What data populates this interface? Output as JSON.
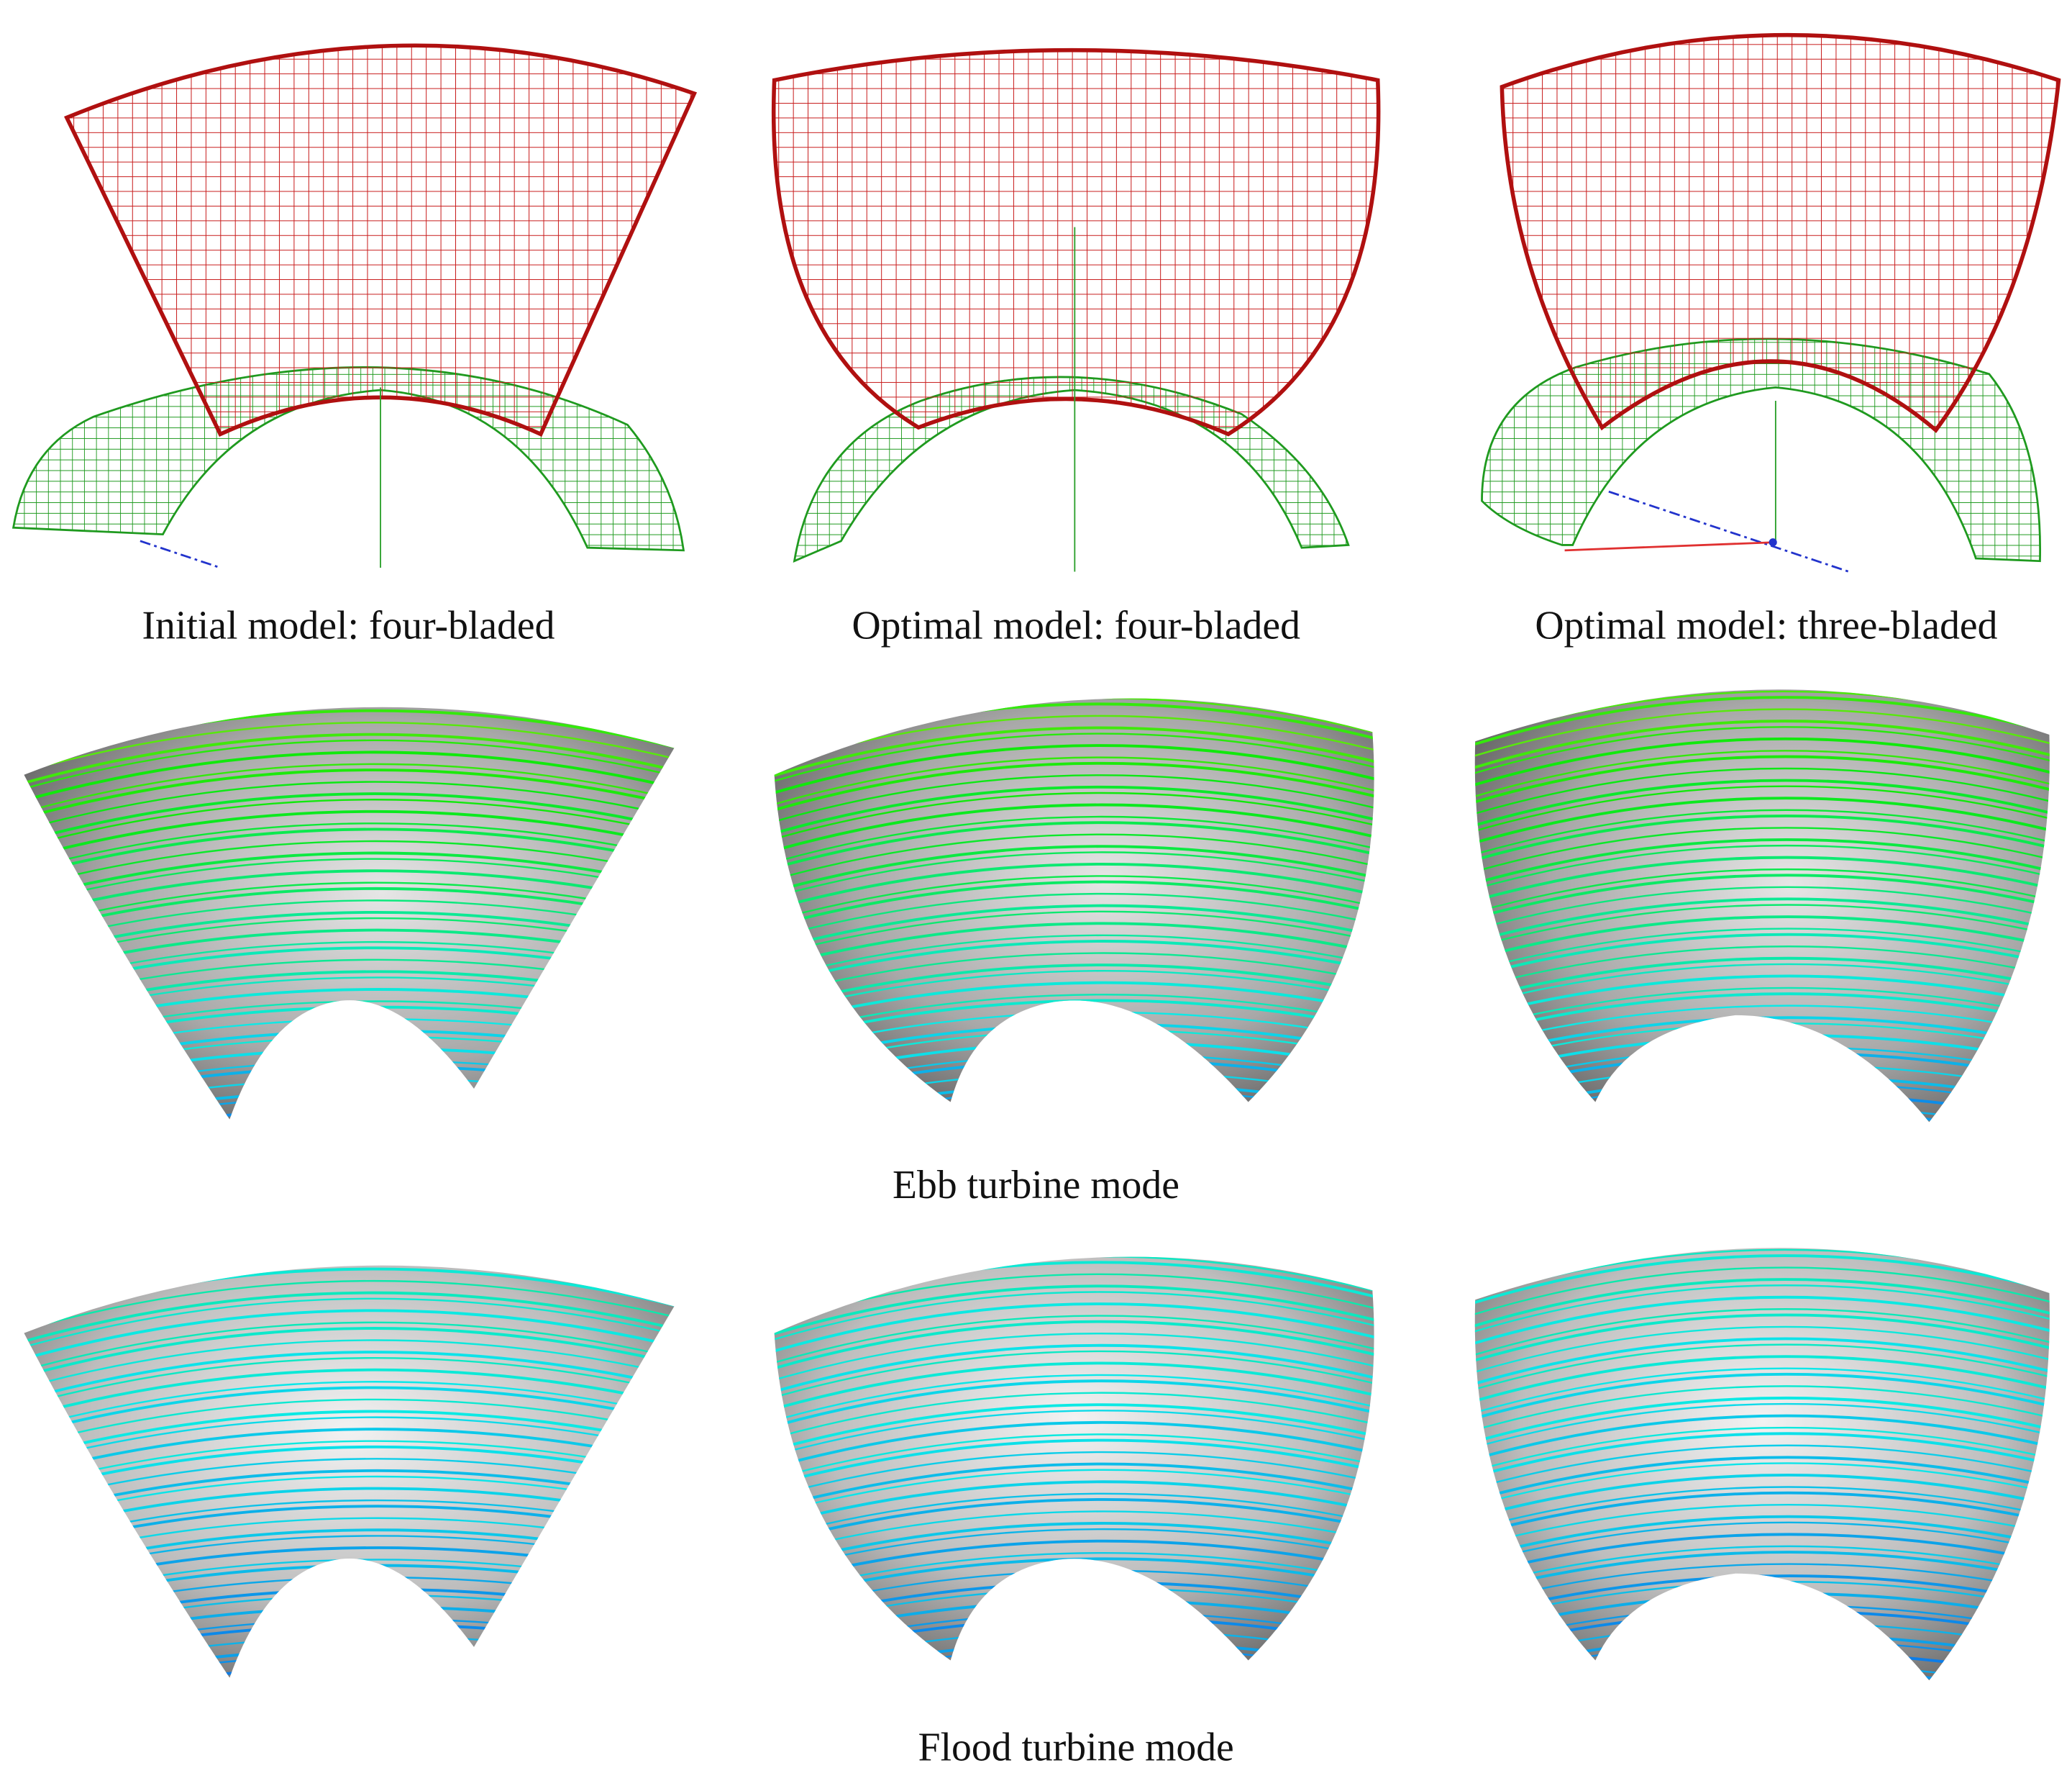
{
  "panels": [
    {
      "caption": "Initial model: four-bladed"
    },
    {
      "caption": "Optimal model: four-bladed"
    },
    {
      "caption": "Optimal model: three-bladed"
    }
  ],
  "rows": [
    {
      "label": "Ebb turbine mode"
    },
    {
      "label": "Flood turbine mode"
    }
  ]
}
